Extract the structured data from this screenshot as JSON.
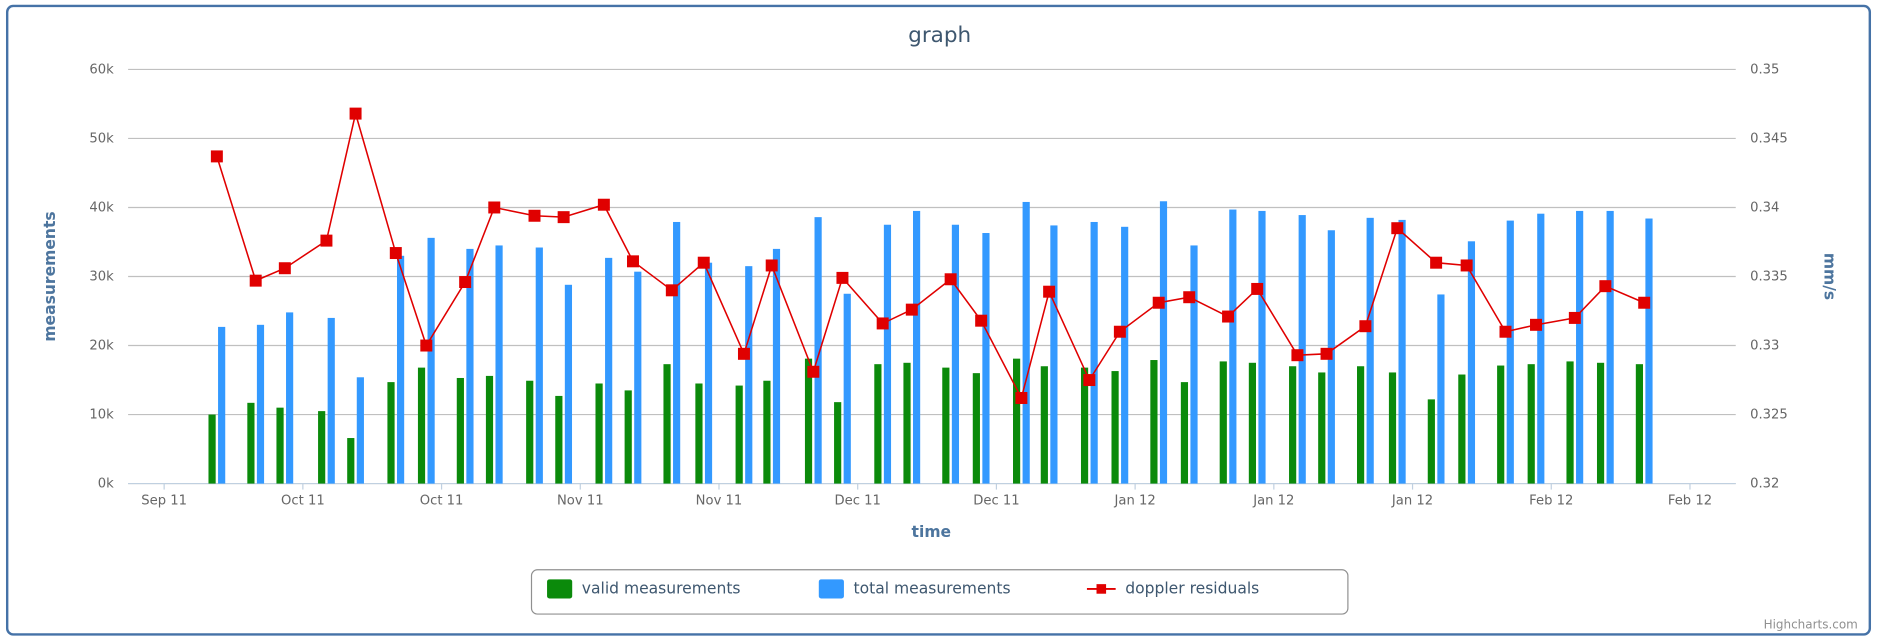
{
  "chart_data": {
    "type": "combo",
    "title": "graph",
    "x_label": "time",
    "y_label": "measurements",
    "y2_label": "mm/s",
    "credits": "Highcharts.com",
    "grid": true,
    "legend": "bottom",
    "xlim": [
      -0.26,
      11.33
    ],
    "xticks": [
      {
        "value": 0,
        "label": "Sep 11"
      },
      {
        "value": 1,
        "label": "Oct 11"
      },
      {
        "value": 2,
        "label": "Oct 11"
      },
      {
        "value": 3,
        "label": "Nov 11"
      },
      {
        "value": 4,
        "label": "Nov 11"
      },
      {
        "value": 5,
        "label": "Dec 11"
      },
      {
        "value": 6,
        "label": "Dec 11"
      },
      {
        "value": 7,
        "label": "Jan 12"
      },
      {
        "value": 8,
        "label": "Jan 12"
      },
      {
        "value": 9,
        "label": "Jan 12"
      },
      {
        "value": 10,
        "label": "Feb 12"
      },
      {
        "value": 11,
        "label": "Feb 12"
      }
    ],
    "ylim": [
      0,
      60000
    ],
    "yticks": [
      {
        "value": 0,
        "label": "0k"
      },
      {
        "value": 10000,
        "label": "10k"
      },
      {
        "value": 20000,
        "label": "20k"
      },
      {
        "value": 30000,
        "label": "30k"
      },
      {
        "value": 40000,
        "label": "40k"
      },
      {
        "value": 50000,
        "label": "50k"
      },
      {
        "value": 60000,
        "label": "60k"
      }
    ],
    "y2lim": [
      0.32,
      0.35
    ],
    "y2ticks": [
      0.32,
      0.325,
      0.33,
      0.335,
      0.34,
      0.345,
      0.35
    ],
    "x": [
      0.38,
      0.66,
      0.87,
      1.17,
      1.38,
      1.67,
      1.89,
      2.17,
      2.38,
      2.67,
      2.88,
      3.17,
      3.38,
      3.66,
      3.89,
      4.18,
      4.38,
      4.68,
      4.89,
      5.18,
      5.39,
      5.67,
      5.89,
      6.18,
      6.38,
      6.67,
      6.89,
      7.17,
      7.39,
      7.67,
      7.88,
      8.17,
      8.38,
      8.66,
      8.89,
      9.17,
      9.39,
      9.67,
      9.89,
      10.17,
      10.39,
      10.67
    ],
    "series": [
      {
        "name": "valid measurements",
        "type": "column",
        "color": "#0b8a0b",
        "values": [
          10000,
          11700,
          11000,
          10500,
          6600,
          14700,
          16800,
          15300,
          15600,
          14900,
          12700,
          14500,
          13500,
          17300,
          14500,
          14200,
          14900,
          18100,
          11800,
          17300,
          17500,
          16800,
          16000,
          18100,
          17000,
          16800,
          16300,
          17900,
          14700,
          17700,
          17500,
          17000,
          16100,
          17000,
          16100,
          12200,
          15800,
          17100,
          17300,
          17700,
          17500,
          17300
        ]
      },
      {
        "name": "total measurements",
        "type": "column",
        "color": "#3399ff",
        "values": [
          22700,
          23000,
          24800,
          24000,
          15400,
          33000,
          35600,
          34000,
          34500,
          34200,
          28800,
          32700,
          30700,
          37900,
          32000,
          31500,
          34000,
          38600,
          27500,
          37500,
          39500,
          37500,
          36300,
          40800,
          37400,
          37900,
          37200,
          40900,
          34500,
          39700,
          39500,
          38900,
          36700,
          38500,
          38200,
          27400,
          35100,
          38100,
          39100,
          39500,
          39500,
          38400
        ]
      },
      {
        "name": "doppler residuals",
        "type": "line",
        "axis": "y2",
        "color": "#e00000",
        "values": [
          0.3437,
          0.3347,
          0.3356,
          0.3376,
          0.3468,
          0.3367,
          0.33,
          0.3346,
          0.34,
          0.3394,
          0.3393,
          0.3402,
          0.3361,
          0.334,
          0.336,
          0.3294,
          0.3358,
          0.3281,
          0.3349,
          0.3316,
          0.3326,
          0.3348,
          0.3318,
          0.3262,
          0.3339,
          0.3275,
          0.331,
          0.3331,
          0.3335,
          0.3321,
          0.3341,
          0.3293,
          0.3294,
          0.3314,
          0.3385,
          0.336,
          0.3358,
          0.331,
          0.3315,
          0.332,
          0.3343,
          0.3331
        ]
      }
    ]
  }
}
